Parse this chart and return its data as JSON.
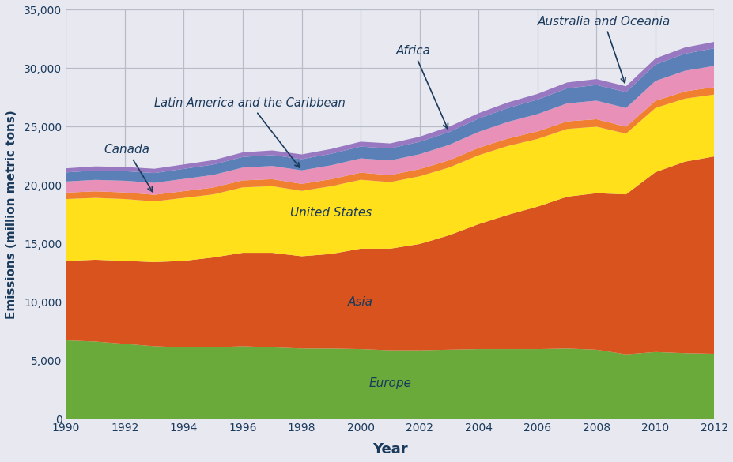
{
  "years": [
    1990,
    1991,
    1992,
    1993,
    1994,
    1995,
    1996,
    1997,
    1998,
    1999,
    2000,
    2001,
    2002,
    2003,
    2004,
    2005,
    2006,
    2007,
    2008,
    2009,
    2010,
    2011,
    2012
  ],
  "Europe": [
    6700,
    6600,
    6400,
    6200,
    6100,
    6100,
    6200,
    6100,
    6000,
    6000,
    5950,
    5850,
    5850,
    5900,
    5950,
    5950,
    5950,
    6000,
    5900,
    5500,
    5700,
    5600,
    5550
  ],
  "Asia": [
    6800,
    7000,
    7100,
    7200,
    7400,
    7700,
    8000,
    8100,
    7900,
    8100,
    8600,
    8700,
    9100,
    9800,
    10700,
    11500,
    12200,
    13000,
    13400,
    13700,
    15400,
    16400,
    16900
  ],
  "United_States": [
    5300,
    5300,
    5300,
    5200,
    5400,
    5400,
    5600,
    5700,
    5600,
    5800,
    5900,
    5700,
    5800,
    5800,
    5900,
    5900,
    5800,
    5800,
    5700,
    5200,
    5500,
    5400,
    5300
  ],
  "Canada": [
    550,
    560,
    565,
    565,
    575,
    585,
    595,
    600,
    595,
    600,
    610,
    600,
    610,
    620,
    630,
    640,
    645,
    650,
    635,
    585,
    610,
    620,
    630
  ],
  "Latin_America": [
    950,
    980,
    1000,
    1020,
    1050,
    1080,
    1100,
    1130,
    1160,
    1190,
    1220,
    1250,
    1280,
    1320,
    1370,
    1420,
    1480,
    1540,
    1590,
    1610,
    1700,
    1760,
    1820
  ],
  "Africa": [
    780,
    800,
    820,
    840,
    860,
    885,
    910,
    935,
    960,
    985,
    1010,
    1035,
    1060,
    1100,
    1140,
    1190,
    1240,
    1290,
    1340,
    1360,
    1410,
    1460,
    1510
  ],
  "Australia_Oceania": [
    350,
    355,
    360,
    368,
    375,
    382,
    390,
    398,
    405,
    412,
    420,
    428,
    438,
    450,
    462,
    478,
    490,
    500,
    510,
    500,
    520,
    535,
    550
  ],
  "colors": {
    "Europe": "#6aaa3a",
    "Asia": "#d9531e",
    "United_States": "#ffe01b",
    "Canada": "#f08030",
    "Latin_America": "#e890b8",
    "Africa": "#5b80b8",
    "Australia_Oceania": "#9878c0"
  },
  "background_color": "#e8e8f0",
  "ylabel": "Emissions (million metric tons)",
  "xlabel": "Year",
  "ylim": [
    0,
    35000
  ],
  "yticks": [
    0,
    5000,
    10000,
    15000,
    20000,
    25000,
    30000,
    35000
  ],
  "label_color": "#1a3a5c",
  "label_fontsize": 11,
  "stack_order": [
    "Europe",
    "Asia",
    "United_States",
    "Canada",
    "Latin_America",
    "Africa",
    "Australia_Oceania"
  ]
}
